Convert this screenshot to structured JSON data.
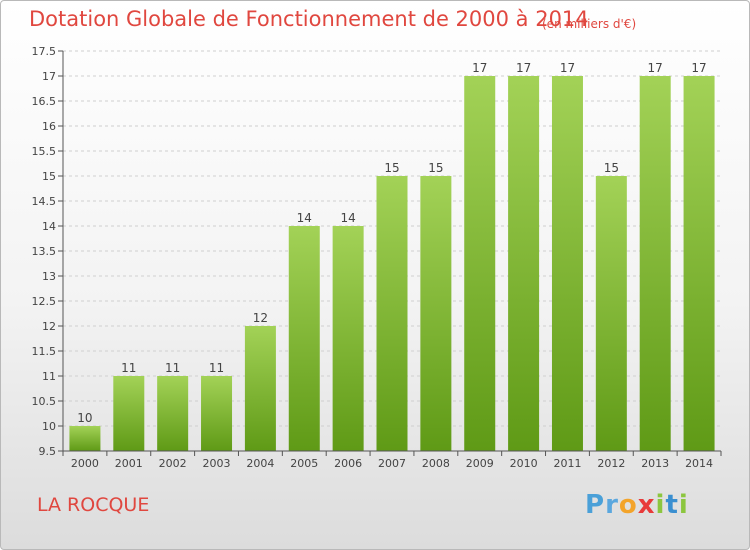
{
  "header": {
    "title": "Dotation Globale de Fonctionnement de 2000 à 2014",
    "subtitle": "(en milliers d'€)"
  },
  "footer": {
    "commune": "LA ROCQUE",
    "logo": {
      "p": "P",
      "r": "r",
      "o": "o",
      "x": "x",
      "i": "i",
      "t": "t",
      "i2": "i"
    }
  },
  "colors": {
    "title": "#e0473f",
    "bar_top": "#a3d257",
    "bar_bottom": "#5f9a16",
    "grid": "#cfcfcf"
  },
  "chart_data": {
    "type": "bar",
    "title": "Dotation Globale de Fonctionnement de 2000 à 2014",
    "subtitle": "(en milliers d'€)",
    "categories": [
      "2000",
      "2001",
      "2002",
      "2003",
      "2004",
      "2005",
      "2006",
      "2007",
      "2008",
      "2009",
      "2010",
      "2011",
      "2012",
      "2013",
      "2014"
    ],
    "values": [
      10,
      11,
      11,
      11,
      12,
      14,
      14,
      15,
      15,
      17,
      17,
      17,
      15,
      17,
      17
    ],
    "ylim": [
      9.5,
      17.5
    ],
    "yticks": [
      "9.5",
      "10",
      "10.5",
      "11",
      "11.5",
      "12",
      "12.5",
      "13",
      "13.5",
      "14",
      "14.5",
      "15",
      "15.5",
      "16",
      "16.5",
      "17",
      "17.5"
    ],
    "grid": true,
    "xlabel": "",
    "ylabel": ""
  }
}
